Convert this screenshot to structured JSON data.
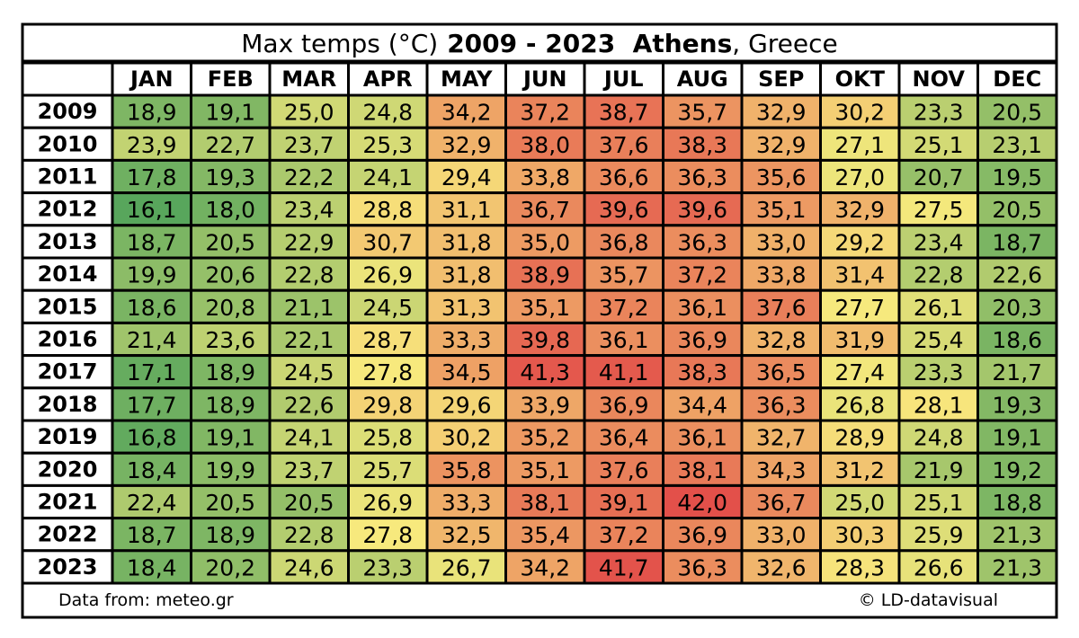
{
  "chart_data": {
    "type": "heatmap",
    "title": [
      "Max temps (°C)",
      "2009 - 2023  Athens",
      ", Greece"
    ],
    "categories": [
      "JAN",
      "FEB",
      "MAR",
      "APR",
      "MAY",
      "JUN",
      "JUL",
      "AUG",
      "SEP",
      "OKT",
      "NOV",
      "DEC"
    ],
    "colors": [
      "#58a65c",
      "#f7e97d",
      "#e3504a"
    ],
    "series": [
      {
        "name": "2009",
        "values": [
          18.9,
          19.1,
          25.0,
          24.8,
          34.2,
          37.2,
          38.7,
          35.7,
          32.9,
          30.2,
          23.3,
          20.5
        ],
        "value_labels": [
          "18,9",
          "19,1",
          "25,0",
          "24,8",
          "34,2",
          "37,2",
          "38,7",
          "35,7",
          "32,9",
          "30,2",
          "23,3",
          "20,5"
        ]
      },
      {
        "name": "2010",
        "values": [
          23.9,
          22.7,
          23.7,
          25.3,
          32.9,
          38.0,
          37.6,
          38.3,
          32.9,
          27.1,
          25.1,
          23.1
        ],
        "value_labels": [
          "23,9",
          "22,7",
          "23,7",
          "25,3",
          "32,9",
          "38,0",
          "37,6",
          "38,3",
          "32,9",
          "27,1",
          "25,1",
          "23,1"
        ]
      },
      {
        "name": "2011",
        "values": [
          17.8,
          19.3,
          22.2,
          24.1,
          29.4,
          33.8,
          36.6,
          36.3,
          35.6,
          27.0,
          20.7,
          19.5
        ],
        "value_labels": [
          "17,8",
          "19,3",
          "22,2",
          "24,1",
          "29,4",
          "33,8",
          "36,6",
          "36,3",
          "35,6",
          "27,0",
          "20,7",
          "19,5"
        ]
      },
      {
        "name": "2012",
        "values": [
          16.1,
          18.0,
          23.4,
          28.8,
          31.1,
          36.7,
          39.6,
          39.6,
          35.1,
          32.9,
          27.5,
          20.5
        ],
        "value_labels": [
          "16,1",
          "18,0",
          "23,4",
          "28,8",
          "31,1",
          "36,7",
          "39,6",
          "39,6",
          "35,1",
          "32,9",
          "27,5",
          "20,5"
        ]
      },
      {
        "name": "2013",
        "values": [
          18.7,
          20.5,
          22.9,
          30.7,
          31.8,
          35.0,
          36.8,
          36.3,
          33.0,
          29.2,
          23.4,
          18.7
        ],
        "value_labels": [
          "18,7",
          "20,5",
          "22,9",
          "30,7",
          "31,8",
          "35,0",
          "36,8",
          "36,3",
          "33,0",
          "29,2",
          "23,4",
          "18,7"
        ]
      },
      {
        "name": "2014",
        "values": [
          19.9,
          20.6,
          22.8,
          26.9,
          31.8,
          38.9,
          35.7,
          37.2,
          33.8,
          31.4,
          22.8,
          22.6
        ],
        "value_labels": [
          "19,9",
          "20,6",
          "22,8",
          "26,9",
          "31,8",
          "38,9",
          "35,7",
          "37,2",
          "33,8",
          "31,4",
          "22,8",
          "22,6"
        ]
      },
      {
        "name": "2015",
        "values": [
          18.6,
          20.8,
          21.1,
          24.5,
          31.3,
          35.1,
          37.2,
          36.1,
          37.6,
          27.7,
          26.1,
          20.3
        ],
        "value_labels": [
          "18,6",
          "20,8",
          "21,1",
          "24,5",
          "31,3",
          "35,1",
          "37,2",
          "36,1",
          "37,6",
          "27,7",
          "26,1",
          "20,3"
        ]
      },
      {
        "name": "2016",
        "values": [
          21.4,
          23.6,
          22.1,
          28.7,
          33.3,
          39.8,
          36.1,
          36.9,
          32.8,
          31.9,
          25.4,
          18.6
        ],
        "value_labels": [
          "21,4",
          "23,6",
          "22,1",
          "28,7",
          "33,3",
          "39,8",
          "36,1",
          "36,9",
          "32,8",
          "31,9",
          "25,4",
          "18,6"
        ]
      },
      {
        "name": "2017",
        "values": [
          17.1,
          18.9,
          24.5,
          27.8,
          34.5,
          41.3,
          41.1,
          38.3,
          36.5,
          27.4,
          23.3,
          21.7
        ],
        "value_labels": [
          "17,1",
          "18,9",
          "24,5",
          "27,8",
          "34,5",
          "41,3",
          "41,1",
          "38,3",
          "36,5",
          "27,4",
          "23,3",
          "21,7"
        ]
      },
      {
        "name": "2018",
        "values": [
          17.7,
          18.9,
          22.6,
          29.8,
          29.6,
          33.9,
          36.9,
          34.4,
          36.3,
          26.8,
          28.1,
          19.3
        ],
        "value_labels": [
          "17,7",
          "18,9",
          "22,6",
          "29,8",
          "29,6",
          "33,9",
          "36,9",
          "34,4",
          "36,3",
          "26,8",
          "28,1",
          "19,3"
        ]
      },
      {
        "name": "2019",
        "values": [
          16.8,
          19.1,
          24.1,
          25.8,
          30.2,
          35.2,
          36.4,
          36.1,
          32.7,
          28.9,
          24.8,
          19.1
        ],
        "value_labels": [
          "16,8",
          "19,1",
          "24,1",
          "25,8",
          "30,2",
          "35,2",
          "36,4",
          "36,1",
          "32,7",
          "28,9",
          "24,8",
          "19,1"
        ]
      },
      {
        "name": "2020",
        "values": [
          18.4,
          19.9,
          23.7,
          25.7,
          35.8,
          35.1,
          37.6,
          38.1,
          34.3,
          31.2,
          21.9,
          19.2
        ],
        "value_labels": [
          "18,4",
          "19,9",
          "23,7",
          "25,7",
          "35,8",
          "35,1",
          "37,6",
          "38,1",
          "34,3",
          "31,2",
          "21,9",
          "19,2"
        ]
      },
      {
        "name": "2021",
        "values": [
          22.4,
          20.5,
          20.5,
          26.9,
          33.3,
          38.1,
          39.1,
          42.0,
          36.7,
          25.0,
          25.1,
          18.8
        ],
        "value_labels": [
          "22,4",
          "20,5",
          "20,5",
          "26,9",
          "33,3",
          "38,1",
          "39,1",
          "42,0",
          "36,7",
          "25,0",
          "25,1",
          "18,8"
        ]
      },
      {
        "name": "2022",
        "values": [
          18.7,
          18.9,
          22.8,
          27.8,
          32.5,
          35.4,
          37.2,
          36.9,
          33.0,
          30.3,
          25.9,
          21.3
        ],
        "value_labels": [
          "18,7",
          "18,9",
          "22,8",
          "27,8",
          "32,5",
          "35,4",
          "37,2",
          "36,9",
          "33,0",
          "30,3",
          "25,9",
          "21,3"
        ]
      },
      {
        "name": "2023",
        "values": [
          18.4,
          20.2,
          24.6,
          23.3,
          26.7,
          34.2,
          41.7,
          36.3,
          32.6,
          28.3,
          26.6,
          21.3
        ],
        "value_labels": [
          "18,4",
          "20,2",
          "24,6",
          "23,3",
          "26,7",
          "34,2",
          "41,7",
          "36,3",
          "32,6",
          "28,3",
          "26,6",
          "21,3"
        ]
      }
    ],
    "source": "Data from: meteo.gr",
    "credit": "© LD-datavisual"
  }
}
